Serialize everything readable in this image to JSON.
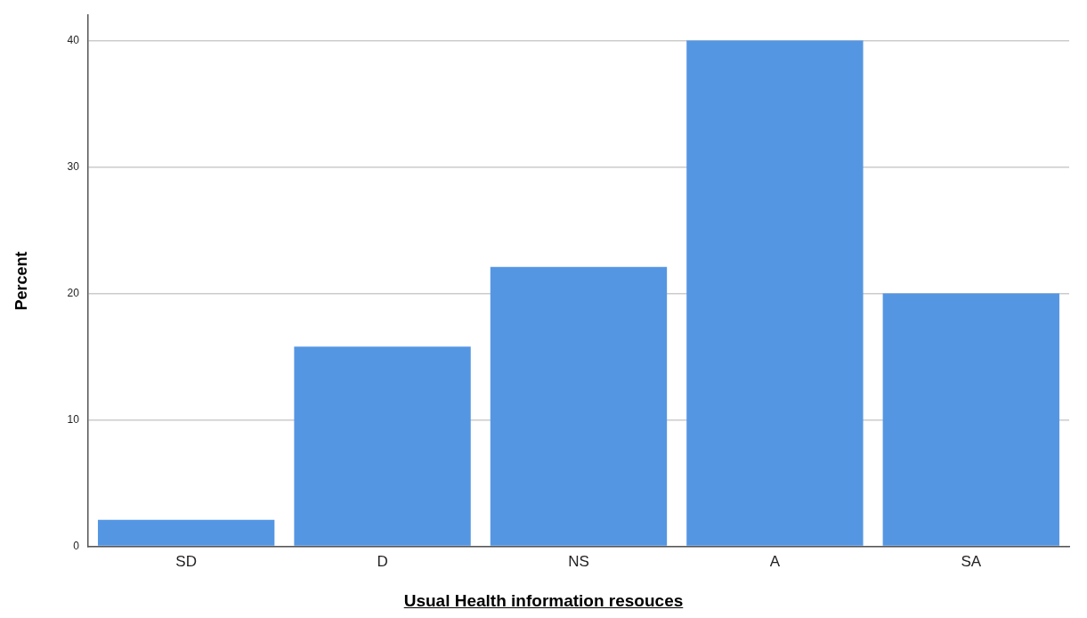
{
  "chart_data": {
    "type": "bar",
    "xlabel": "Usual Health information resouces",
    "ylabel": "Percent",
    "categories": [
      "SD",
      "D",
      "NS",
      "A",
      "SA"
    ],
    "values": [
      2.1,
      15.8,
      22.1,
      40,
      20
    ],
    "color": "#5596e3",
    "ylim": [
      0,
      42
    ],
    "yticks": [
      0,
      10,
      20,
      30,
      40
    ],
    "grid": "y",
    "legend": false
  }
}
